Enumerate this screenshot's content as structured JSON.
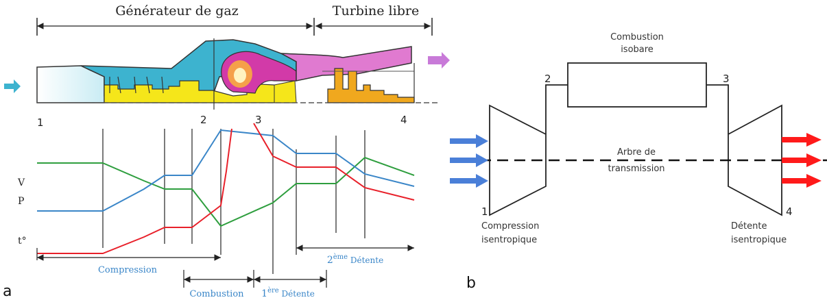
{
  "panel_a": {
    "panel_label": "a",
    "header": {
      "gas_generator": "Générateur de gaz",
      "free_turbine": "Turbine libre"
    },
    "station_labels": [
      "1",
      "2",
      "3",
      "4"
    ],
    "y_labels": {
      "v": "V",
      "p": "P",
      "t": "t°"
    },
    "phases": {
      "compression": "Compression",
      "combustion": "Combustion",
      "first_expansion_prefix": "1",
      "first_expansion_sup": "ère",
      "first_expansion_suffix": " Détente",
      "second_expansion_prefix": "2",
      "second_expansion_sup": "ème",
      "second_expansion_suffix": " Détente"
    },
    "colors": {
      "velocity": "#2e9e3e",
      "pressure": "#3a86c8",
      "temperature": "#e8202a",
      "compressor_casing": "#3db3cf",
      "rotor": "#f5e61a",
      "combustion": "#d23aa8",
      "turbine_casing": "#e07ad0",
      "free_turbine_rotor": "#f0a81e",
      "inlet_arrow": "#3db3cf",
      "exhaust_arrow": "#c87ad8"
    }
  },
  "panel_b": {
    "panel_label": "b",
    "combustion_line1": "Combustion",
    "combustion_line2": "isobare",
    "shaft_line1": "Arbre de",
    "shaft_line2": "transmission",
    "compression_line1": "Compression",
    "compression_line2": "isentropique",
    "expansion_line1": "Détente",
    "expansion_line2": "isentropique",
    "points": [
      "1",
      "2",
      "3",
      "4"
    ],
    "colors": {
      "inlet": "#4a7fd8",
      "outlet": "#ff1a1a"
    }
  }
}
